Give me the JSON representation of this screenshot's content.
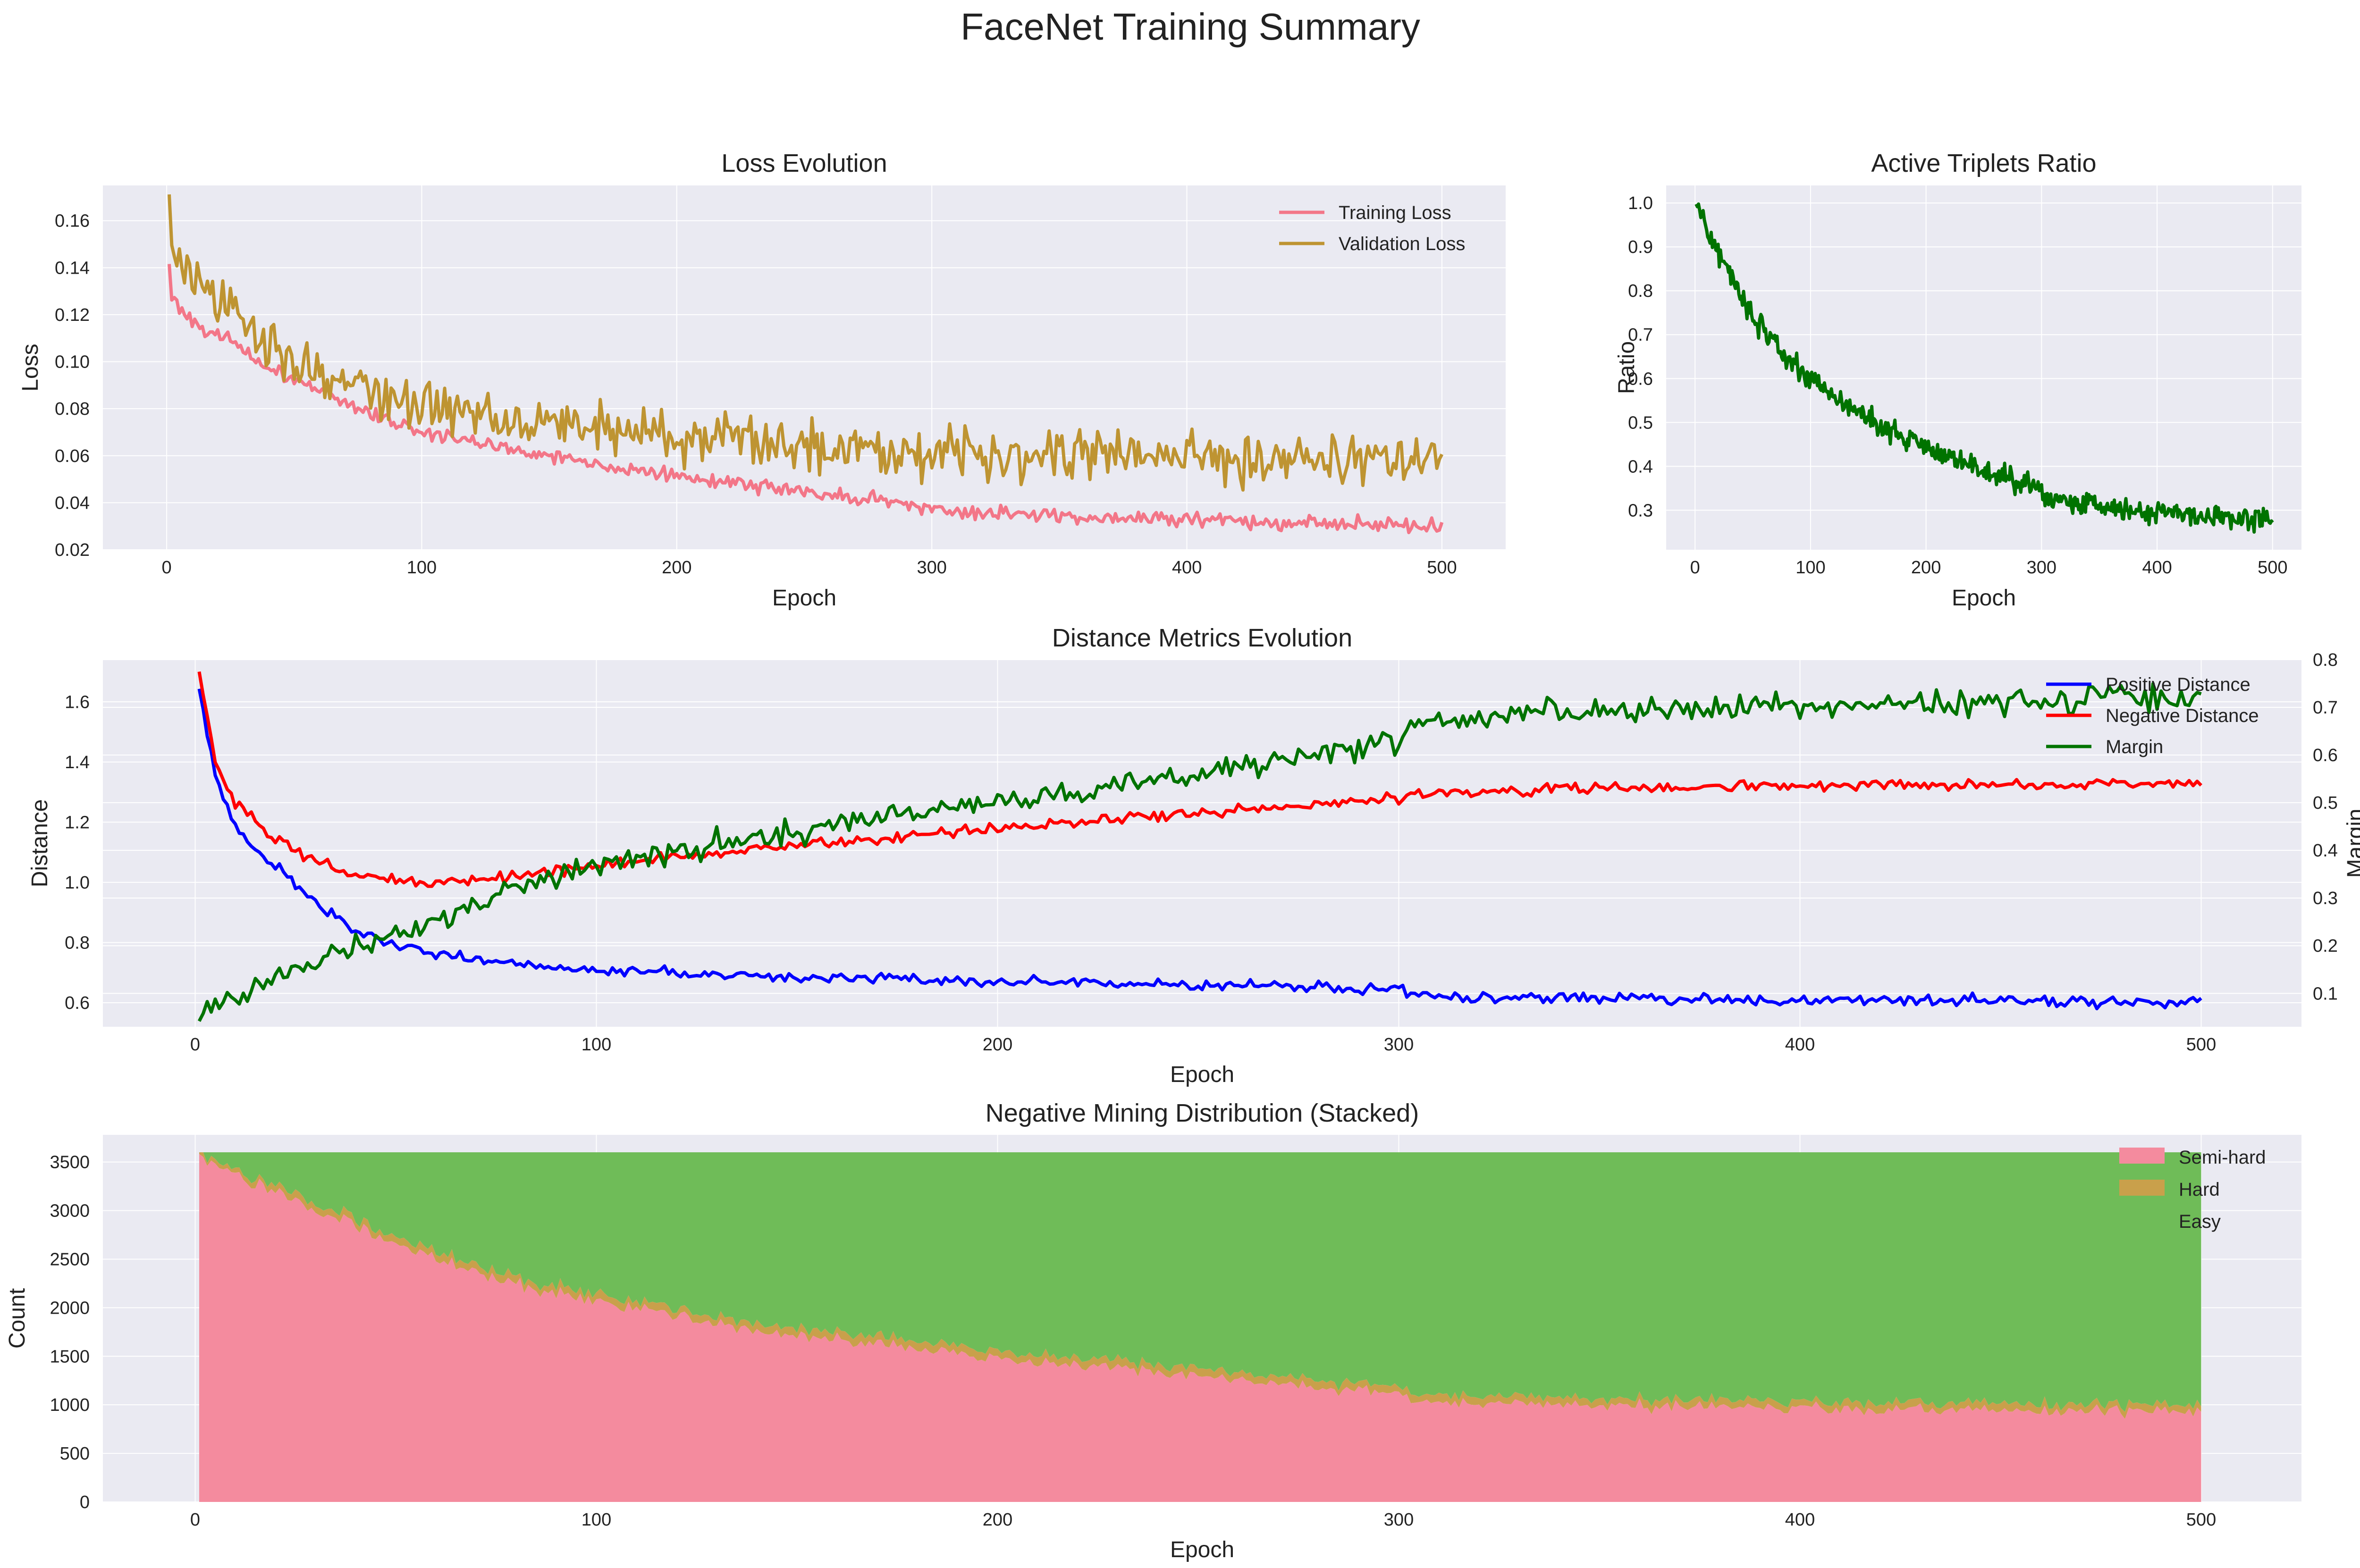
{
  "figure": {
    "suptitle": "FaceNet Training Summary"
  },
  "colors": {
    "axes_bg": "#EAEAF2",
    "grid": "#FFFFFF",
    "training_loss": "#F37688",
    "validation_loss": "#BE9432",
    "ratio": "#007300",
    "positive": "#0000FF",
    "negative": "#FF0000",
    "margin": "#007300",
    "semi_hard": "#F48B9E",
    "hard": "#C9A04B",
    "easy": "#6FBC58"
  },
  "chart_data": [
    {
      "id": "loss",
      "type": "line",
      "title": "Loss Evolution",
      "xlabel": "Epoch",
      "ylabel": "Loss",
      "xlim": [
        -25,
        525
      ],
      "ylim": [
        0.02,
        0.175
      ],
      "xticks": [
        0,
        100,
        200,
        300,
        400,
        500
      ],
      "yticks": [
        0.02,
        0.04,
        0.06,
        0.08,
        0.1,
        0.12,
        0.14,
        0.16
      ],
      "ytick_labels": [
        "0.02",
        "0.04",
        "0.06",
        "0.08",
        "0.10",
        "0.12",
        "0.14",
        "0.16"
      ],
      "grid": true,
      "legend": "top-right",
      "x_range": [
        1,
        500
      ],
      "series": [
        {
          "name": "Training Loss",
          "color_key": "training_loss",
          "anchors": [
            [
              1,
              0.141
            ],
            [
              2,
              0.127
            ],
            [
              5,
              0.124
            ],
            [
              10,
              0.117
            ],
            [
              20,
              0.112
            ],
            [
              40,
              0.097
            ],
            [
              60,
              0.088
            ],
            [
              80,
              0.078
            ],
            [
              100,
              0.07
            ],
            [
              150,
              0.06
            ],
            [
              200,
              0.051
            ],
            [
              250,
              0.045
            ],
            [
              300,
              0.038
            ],
            [
              305,
              0.036
            ],
            [
              400,
              0.033
            ],
            [
              500,
              0.03
            ]
          ],
          "noise": 0.0015
        },
        {
          "name": "Validation Loss",
          "color_key": "validation_loss",
          "anchors": [
            [
              1,
              0.167
            ],
            [
              3,
              0.145
            ],
            [
              10,
              0.135
            ],
            [
              20,
              0.125
            ],
            [
              40,
              0.108
            ],
            [
              60,
              0.095
            ],
            [
              80,
              0.087
            ],
            [
              100,
              0.081
            ],
            [
              150,
              0.075
            ],
            [
              200,
              0.068
            ],
            [
              250,
              0.065
            ],
            [
              300,
              0.062
            ],
            [
              400,
              0.06
            ],
            [
              500,
              0.058
            ]
          ],
          "noise": 0.0055
        }
      ]
    },
    {
      "id": "ratio",
      "type": "line",
      "title": "Active Triplets Ratio",
      "xlabel": "Epoch",
      "ylabel": "Ratio",
      "xlim": [
        -25,
        525
      ],
      "ylim": [
        0.21,
        1.04
      ],
      "xticks": [
        0,
        100,
        200,
        300,
        400,
        500
      ],
      "yticks": [
        0.3,
        0.4,
        0.5,
        0.6,
        0.7,
        0.8,
        0.9,
        1.0
      ],
      "ytick_labels": [
        "0.3",
        "0.4",
        "0.5",
        "0.6",
        "0.7",
        "0.8",
        "0.9",
        "1.0"
      ],
      "grid": true,
      "x_range": [
        1,
        500
      ],
      "series": [
        {
          "name": "Active Triplets Ratio",
          "color_key": "ratio",
          "anchors": [
            [
              1,
              1.0
            ],
            [
              10,
              0.95
            ],
            [
              25,
              0.86
            ],
            [
              50,
              0.74
            ],
            [
              75,
              0.66
            ],
            [
              100,
              0.6
            ],
            [
              150,
              0.51
            ],
            [
              200,
              0.44
            ],
            [
              250,
              0.39
            ],
            [
              300,
              0.35
            ],
            [
              310,
              0.32
            ],
            [
              400,
              0.295
            ],
            [
              500,
              0.28
            ]
          ],
          "noise": 0.013
        }
      ]
    },
    {
      "id": "distance",
      "type": "line",
      "title": "Distance Metrics Evolution",
      "xlabel": "Epoch",
      "ylabel": "Distance",
      "y2label": "Margin",
      "xlim": [
        -23,
        525
      ],
      "ylim": [
        0.52,
        1.74
      ],
      "y2lim": [
        0.03,
        0.8
      ],
      "xticks": [
        0,
        100,
        200,
        300,
        400,
        500
      ],
      "yticks": [
        0.6,
        0.8,
        1.0,
        1.2,
        1.4,
        1.6
      ],
      "ytick_labels": [
        "0.6",
        "0.8",
        "1.0",
        "1.2",
        "1.4",
        "1.6"
      ],
      "y2ticks": [
        0.1,
        0.2,
        0.3,
        0.4,
        0.5,
        0.6,
        0.7,
        0.8
      ],
      "y2tick_labels": [
        "0.1",
        "0.2",
        "0.3",
        "0.4",
        "0.5",
        "0.6",
        "0.7",
        "0.8"
      ],
      "grid": true,
      "legend": "top-right",
      "x_range": [
        1,
        500
      ],
      "series": [
        {
          "name": "Positive Distance",
          "color_key": "positive",
          "axis": "left",
          "anchors": [
            [
              1,
              1.65
            ],
            [
              5,
              1.35
            ],
            [
              10,
              1.18
            ],
            [
              20,
              1.05
            ],
            [
              30,
              0.93
            ],
            [
              40,
              0.84
            ],
            [
              50,
              0.79
            ],
            [
              60,
              0.76
            ],
            [
              80,
              0.73
            ],
            [
              100,
              0.71
            ],
            [
              150,
              0.685
            ],
            [
              200,
              0.67
            ],
            [
              250,
              0.66
            ],
            [
              300,
              0.645
            ],
            [
              305,
              0.62
            ],
            [
              400,
              0.61
            ],
            [
              500,
              0.6
            ]
          ],
          "noise": 0.009
        },
        {
          "name": "Negative Distance",
          "color_key": "negative",
          "axis": "left",
          "anchors": [
            [
              1,
              1.71
            ],
            [
              5,
              1.4
            ],
            [
              10,
              1.26
            ],
            [
              20,
              1.14
            ],
            [
              30,
              1.07
            ],
            [
              40,
              1.02
            ],
            [
              60,
              1.0
            ],
            [
              80,
              1.02
            ],
            [
              100,
              1.06
            ],
            [
              150,
              1.12
            ],
            [
              200,
              1.18
            ],
            [
              250,
              1.23
            ],
            [
              300,
              1.28
            ],
            [
              305,
              1.3
            ],
            [
              400,
              1.32
            ],
            [
              500,
              1.33
            ]
          ],
          "noise": 0.009
        },
        {
          "name": "Margin",
          "color_key": "margin",
          "axis": "right",
          "anchors": [
            [
              1,
              0.06
            ],
            [
              20,
              0.13
            ],
            [
              40,
              0.2
            ],
            [
              60,
              0.25
            ],
            [
              80,
              0.32
            ],
            [
              100,
              0.37
            ],
            [
              150,
              0.44
            ],
            [
              200,
              0.5
            ],
            [
              250,
              0.56
            ],
            [
              300,
              0.63
            ],
            [
              305,
              0.68
            ],
            [
              400,
              0.7
            ],
            [
              500,
              0.72
            ]
          ],
          "noise": 0.013
        }
      ]
    },
    {
      "id": "mining",
      "type": "area",
      "stacked": true,
      "title": "Negative Mining Distribution (Stacked)",
      "xlabel": "Epoch",
      "ylabel": "Count",
      "xlim": [
        -23,
        525
      ],
      "ylim": [
        0,
        3780
      ],
      "xticks": [
        0,
        100,
        200,
        300,
        400,
        500
      ],
      "yticks": [
        0,
        500,
        1000,
        1500,
        2000,
        2500,
        3000,
        3500
      ],
      "ytick_labels": [
        "0",
        "500",
        "1000",
        "1500",
        "2000",
        "2500",
        "3000",
        "3500"
      ],
      "grid": true,
      "legend": "top-right",
      "x_range": [
        1,
        500
      ],
      "total": 3600,
      "series": [
        {
          "name": "Semi-hard",
          "color_key": "semi_hard",
          "anchors": [
            [
              1,
              3560
            ],
            [
              25,
              3100
            ],
            [
              50,
              2650
            ],
            [
              75,
              2300
            ],
            [
              100,
              2050
            ],
            [
              150,
              1720
            ],
            [
              200,
              1480
            ],
            [
              250,
              1300
            ],
            [
              300,
              1120
            ],
            [
              305,
              1020
            ],
            [
              400,
              960
            ],
            [
              500,
              930
            ]
          ],
          "noise": 35
        },
        {
          "name": "Hard",
          "color_key": "hard",
          "anchors": [
            [
              1,
              40
            ],
            [
              20,
              65
            ],
            [
              100,
              75
            ],
            [
              200,
              80
            ],
            [
              300,
              75
            ],
            [
              400,
              75
            ],
            [
              500,
              70
            ]
          ],
          "noise": 10
        },
        {
          "name": "Easy",
          "color_key": "easy",
          "remainder": true
        }
      ]
    }
  ]
}
